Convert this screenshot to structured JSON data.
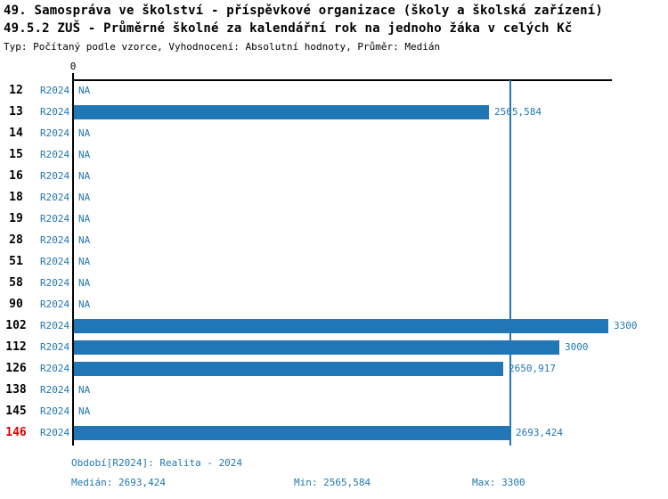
{
  "title_line1": "49. Samospráva ve školství - příspěvkové organizace (školy a školská zařízení)",
  "title_line2": "49.5.2 ZUŠ - Průměrné školné za kalendářní rok na jednoho žáka v celých Kč",
  "subtitle": "Typ: Počítaný podle vzorce, Vyhodnocení: Absolutní hodnoty, Průměr: Medián",
  "colors": {
    "bar": "#2176b5",
    "accent_text": "#2277b0",
    "highlight_row_number": "#dd0000",
    "axis": "#000000"
  },
  "chart_data": {
    "type": "bar",
    "orientation": "horizontal",
    "series_label": "R2024",
    "na_label": "NA",
    "x_axis": {
      "zero_label": "0",
      "xlim": [
        0,
        3300
      ],
      "grid": false
    },
    "median_value": 2693.424,
    "rows": [
      {
        "id": "12",
        "value": null,
        "label": "NA",
        "highlight": false
      },
      {
        "id": "13",
        "value": 2565.584,
        "label": "2565,584",
        "highlight": false
      },
      {
        "id": "14",
        "value": null,
        "label": "NA",
        "highlight": false
      },
      {
        "id": "15",
        "value": null,
        "label": "NA",
        "highlight": false
      },
      {
        "id": "16",
        "value": null,
        "label": "NA",
        "highlight": false
      },
      {
        "id": "18",
        "value": null,
        "label": "NA",
        "highlight": false
      },
      {
        "id": "19",
        "value": null,
        "label": "NA",
        "highlight": false
      },
      {
        "id": "28",
        "value": null,
        "label": "NA",
        "highlight": false
      },
      {
        "id": "51",
        "value": null,
        "label": "NA",
        "highlight": false
      },
      {
        "id": "58",
        "value": null,
        "label": "NA",
        "highlight": false
      },
      {
        "id": "90",
        "value": null,
        "label": "NA",
        "highlight": false
      },
      {
        "id": "102",
        "value": 3300,
        "label": "3300",
        "highlight": false
      },
      {
        "id": "112",
        "value": 3000,
        "label": "3000",
        "highlight": false
      },
      {
        "id": "126",
        "value": 2650.917,
        "label": "2650,917",
        "highlight": false
      },
      {
        "id": "138",
        "value": null,
        "label": "NA",
        "highlight": false
      },
      {
        "id": "145",
        "value": null,
        "label": "NA",
        "highlight": false
      },
      {
        "id": "146",
        "value": 2693.424,
        "label": "2693,424",
        "highlight": true
      }
    ],
    "footer": {
      "period": "Období[R2024]: Realita - 2024",
      "median": "Medián: 2693,424",
      "min": "Min: 2565,584",
      "max": "Max: 3300"
    }
  }
}
